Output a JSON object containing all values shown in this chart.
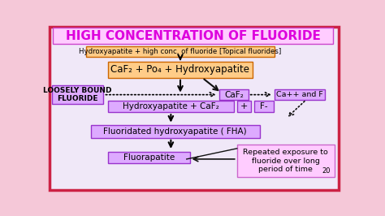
{
  "title": "HIGH CONCENTRATION OF FLUORIDE",
  "title_color": "#dd00dd",
  "title_bg": "#ffccff",
  "title_border": "#cc44cc",
  "bg_color": "#f5c8d8",
  "inner_bg": "#f0e8f8",
  "outer_border": "#cc2244",
  "box1_text": "Hydroxyapatite + high conc. of fluoride [Topical fluorides]",
  "box1_bg": "#ffcc88",
  "box1_border": "#cc6600",
  "box2_text": "CaF₂ + Po₄ + Hydroxyapatite",
  "box2_bg": "#ffcc88",
  "box2_border": "#cc6600",
  "box_left_text": "LOOSELY BOUND\nFLUORIDE",
  "box_left_bg": "#ddaaff",
  "box_left_border": "#9933cc",
  "box_caf2_text": "CaF₂",
  "box_caf2_bg": "#ddaaff",
  "box_caf2_border": "#9933cc",
  "box_caff_text": "Ca++ and F",
  "box_caff_bg": "#ddaaff",
  "box_caff_border": "#9933cc",
  "box3_text": "Hydroxyapatite + CaF₂",
  "box3_bg": "#ddaaff",
  "box3_border": "#9933cc",
  "box_plus_text": "+",
  "box_plus_bg": "#ddaaff",
  "box_plus_border": "#9933cc",
  "box_fminus_text": "F-",
  "box_fminus_bg": "#ddaaff",
  "box_fminus_border": "#9933cc",
  "box4_text": "Fluoridated hydroxyapatite ( FHA)",
  "box4_bg": "#ddaaff",
  "box4_border": "#9933cc",
  "box5_text": "Fluorapatite",
  "box5_bg": "#ddaaff",
  "box5_border": "#9933cc",
  "box_note_text": "Repeated exposure to\nfluoride over long\nperiod of time",
  "box_note_bg": "#ffccff",
  "box_note_border": "#cc66cc",
  "arrow_color": "#111111",
  "dotted_color": "#111111",
  "slide_num": "20"
}
